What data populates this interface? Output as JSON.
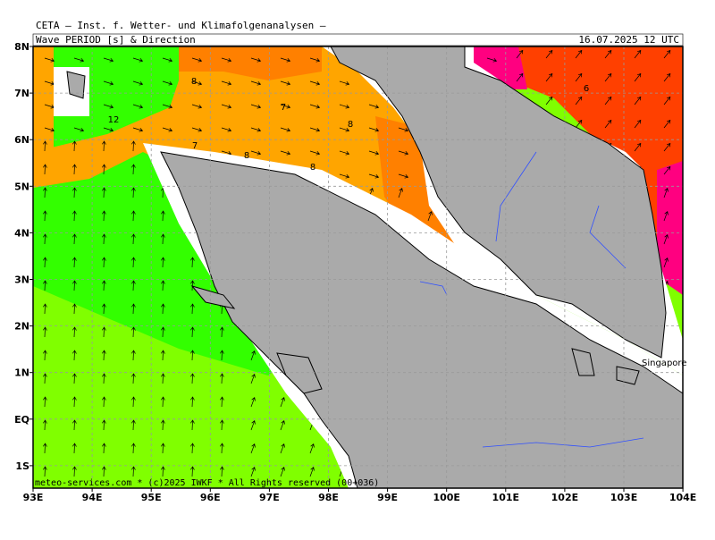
{
  "header": "CETA — Inst. f. Wetter- und Klimafolgenanalysen —",
  "title": "Wave PERIOD [s] & Direction",
  "date": "16.07.2025 12 UTC",
  "lon_labels": [
    "93E",
    "94E",
    "95E",
    "96E",
    "97E",
    "98E",
    "99E",
    "100E",
    "101E",
    "102E",
    "103E",
    "104E"
  ],
  "lat_labels": [
    "8N",
    "7N",
    "6N",
    "5N",
    "4N",
    "3N",
    "2N",
    "1N",
    "EQ",
    "1S"
  ],
  "contour_labels": [
    "8",
    "12",
    "7",
    "7",
    "8",
    "8",
    "8",
    "6"
  ],
  "place_labels": [
    "Singapore"
  ],
  "footer": "meteo-services.com * (c)2025 IWKF * All Rights reserved (00+036)"
}
